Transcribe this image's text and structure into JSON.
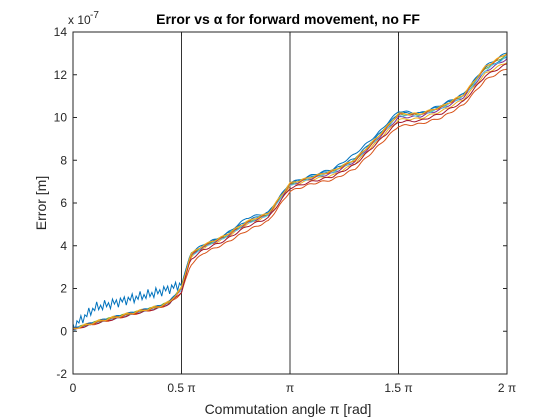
{
  "chart_data": {
    "type": "line",
    "title": "Error vs α for forward movement, no FF",
    "xlabel": "Commutation angle π [rad]",
    "ylabel": "Error [m]",
    "y_exponent_label": "x 10",
    "y_exponent_power": "-7",
    "xlim": [
      0,
      6.2832
    ],
    "ylim": [
      -2,
      14
    ],
    "x_ticks": [
      {
        "value": 0,
        "label": "0"
      },
      {
        "value": 1.5708,
        "label": "0.5 π"
      },
      {
        "value": 3.1416,
        "label": "π"
      },
      {
        "value": 4.7124,
        "label": "1.5 π"
      },
      {
        "value": 6.2832,
        "label": "2 π"
      }
    ],
    "y_ticks": [
      {
        "value": -2,
        "label": "-2"
      },
      {
        "value": 0,
        "label": "0"
      },
      {
        "value": 2,
        "label": "2"
      },
      {
        "value": 4,
        "label": "4"
      },
      {
        "value": 6,
        "label": "6"
      },
      {
        "value": 8,
        "label": "8"
      },
      {
        "value": 10,
        "label": "10"
      },
      {
        "value": 12,
        "label": "12"
      },
      {
        "value": 14,
        "label": "14"
      }
    ],
    "vertical_lines": [
      1.5708,
      3.1416,
      4.7124
    ],
    "grid": false,
    "x": [
      0,
      0.314,
      0.628,
      0.942,
      1.257,
      1.4,
      1.571,
      1.7,
      1.885,
      2.2,
      2.513,
      2.827,
      3.1416,
      3.456,
      3.77,
      4.084,
      4.398,
      4.7124,
      5.027,
      5.341,
      5.655,
      5.969,
      6.2832
    ],
    "series": [
      {
        "color": "#0072BD",
        "noisy_until": 1.571,
        "noise": 0.25,
        "values": [
          0.2,
          1.1,
          1.35,
          1.6,
          1.85,
          2.0,
          2.2,
          3.55,
          3.95,
          4.5,
          5.3,
          5.55,
          6.9,
          7.3,
          7.6,
          8.3,
          9.2,
          10.3,
          10.2,
          10.6,
          11.1,
          12.35,
          12.8
        ]
      },
      {
        "color": "#D95319",
        "values": [
          0.1,
          0.35,
          0.6,
          0.85,
          1.1,
          1.3,
          1.8,
          3.1,
          3.65,
          4.1,
          4.7,
          5.15,
          6.55,
          6.9,
          7.1,
          7.6,
          8.6,
          9.6,
          9.7,
          10.0,
          10.6,
          11.75,
          12.3
        ]
      },
      {
        "color": "#EDB120",
        "values": [
          0.12,
          0.45,
          0.7,
          0.95,
          1.2,
          1.4,
          2.05,
          3.45,
          3.9,
          4.35,
          5.0,
          5.4,
          6.8,
          7.1,
          7.3,
          7.85,
          8.85,
          9.9,
          9.95,
          10.3,
          10.85,
          12.05,
          12.6
        ]
      },
      {
        "color": "#7E2F8E",
        "values": [
          0.1,
          0.4,
          0.65,
          0.9,
          1.15,
          1.35,
          2.0,
          3.5,
          3.95,
          4.4,
          5.05,
          5.45,
          6.85,
          7.15,
          7.4,
          7.95,
          8.95,
          10.0,
          10.05,
          10.4,
          10.95,
          12.15,
          12.75
        ]
      },
      {
        "color": "#77AC30",
        "values": [
          0.12,
          0.42,
          0.68,
          0.92,
          1.18,
          1.38,
          2.02,
          3.6,
          4.0,
          4.45,
          5.1,
          5.5,
          6.9,
          7.2,
          7.5,
          8.05,
          9.05,
          10.15,
          10.15,
          10.5,
          11.05,
          12.3,
          12.95
        ]
      },
      {
        "color": "#4DBEEE",
        "values": [
          0.1,
          0.38,
          0.62,
          0.88,
          1.12,
          1.32,
          1.95,
          3.5,
          3.95,
          4.4,
          5.05,
          5.45,
          6.85,
          7.2,
          7.45,
          8.0,
          9.0,
          10.1,
          10.1,
          10.45,
          11.0,
          12.2,
          12.85
        ]
      },
      {
        "color": "#A2142F",
        "values": [
          0.08,
          0.36,
          0.6,
          0.86,
          1.1,
          1.3,
          1.85,
          3.35,
          3.8,
          4.25,
          4.9,
          5.3,
          6.7,
          7.0,
          7.25,
          7.8,
          8.8,
          9.8,
          9.85,
          10.2,
          10.75,
          11.95,
          12.5
        ]
      },
      {
        "color": "#0072BD",
        "values": [
          0.12,
          0.43,
          0.69,
          0.94,
          1.19,
          1.4,
          2.05,
          3.65,
          4.05,
          4.5,
          5.15,
          5.55,
          6.95,
          7.25,
          7.55,
          8.1,
          9.1,
          10.2,
          10.2,
          10.55,
          11.1,
          12.4,
          13.05
        ]
      },
      {
        "color": "#D95319",
        "values": [
          0.1,
          0.4,
          0.66,
          0.91,
          1.16,
          1.36,
          2.0,
          3.55,
          4.0,
          4.45,
          5.1,
          5.5,
          6.9,
          7.2,
          7.5,
          8.0,
          9.0,
          10.15,
          10.15,
          10.5,
          11.05,
          12.35,
          13.0
        ]
      },
      {
        "color": "#EDB120",
        "values": [
          0.11,
          0.41,
          0.67,
          0.92,
          1.17,
          1.37,
          2.02,
          3.6,
          4.02,
          4.47,
          5.12,
          5.52,
          6.92,
          7.22,
          7.52,
          8.05,
          9.05,
          10.18,
          10.18,
          10.52,
          11.08,
          12.38,
          13.02
        ]
      }
    ]
  }
}
